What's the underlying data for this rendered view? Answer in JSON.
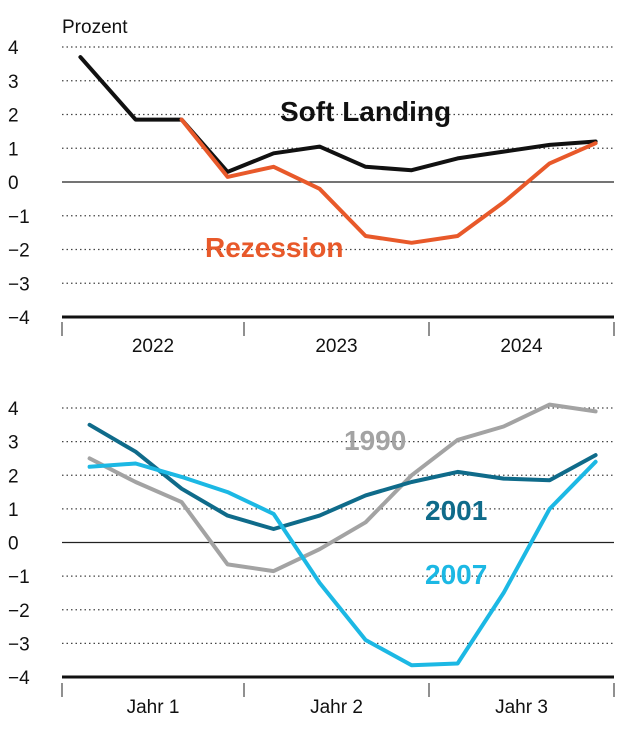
{
  "chart_data": [
    {
      "type": "line",
      "ylabel": "Prozent",
      "ylim": [
        -4,
        4
      ],
      "yticks": [
        4,
        3,
        2,
        1,
        0,
        -1,
        -2,
        -3,
        -4
      ],
      "ytick_labels": [
        "4",
        "3",
        "2",
        "1",
        "0",
        "−1",
        "−2",
        "−3",
        "−4"
      ],
      "categories": [
        "2022",
        "2023",
        "2024"
      ],
      "x_range": [
        0,
        3
      ],
      "grid": true,
      "series": [
        {
          "name": "Soft Landing",
          "color": "#111111",
          "x": [
            0.1,
            0.4,
            0.65,
            0.9,
            1.15,
            1.4,
            1.65,
            1.9,
            2.15,
            2.4,
            2.65,
            2.9
          ],
          "values": [
            3.7,
            1.85,
            1.85,
            0.3,
            0.85,
            1.05,
            0.45,
            0.35,
            0.7,
            0.9,
            1.1,
            1.2
          ]
        },
        {
          "name": "Rezession",
          "color": "#e8592a",
          "x": [
            0.65,
            0.9,
            1.15,
            1.4,
            1.65,
            1.9,
            2.15,
            2.4,
            2.65,
            2.9
          ],
          "values": [
            1.85,
            0.15,
            0.45,
            -0.2,
            -1.6,
            -1.8,
            -1.6,
            -0.6,
            0.55,
            1.15
          ]
        }
      ]
    },
    {
      "type": "line",
      "ylim": [
        -4,
        4
      ],
      "yticks": [
        4,
        3,
        2,
        1,
        0,
        -1,
        -2,
        -3,
        -4
      ],
      "ytick_labels": [
        "4",
        "3",
        "2",
        "1",
        "0",
        "−1",
        "−2",
        "−3",
        "−4"
      ],
      "categories": [
        "Jahr 1",
        "Jahr 2",
        "Jahr 3"
      ],
      "x_range": [
        0,
        3
      ],
      "grid": true,
      "series": [
        {
          "name": "1990",
          "color": "#a3a3a3",
          "x": [
            0.15,
            0.4,
            0.65,
            0.9,
            1.15,
            1.4,
            1.65,
            1.9,
            2.15,
            2.4,
            2.65,
            2.9
          ],
          "values": [
            2.5,
            1.8,
            1.2,
            -0.65,
            -0.85,
            -0.2,
            0.6,
            2.0,
            3.05,
            3.45,
            4.1,
            3.9
          ]
        },
        {
          "name": "2001",
          "color": "#0f6b8a",
          "x": [
            0.15,
            0.4,
            0.65,
            0.9,
            1.15,
            1.4,
            1.65,
            1.9,
            2.15,
            2.4,
            2.65,
            2.9
          ],
          "values": [
            3.5,
            2.7,
            1.6,
            0.8,
            0.4,
            0.8,
            1.4,
            1.8,
            2.1,
            1.9,
            1.85,
            2.6
          ]
        },
        {
          "name": "2007",
          "color": "#1cb8e4",
          "x": [
            0.15,
            0.4,
            0.65,
            0.9,
            1.15,
            1.4,
            1.65,
            1.9,
            2.15,
            2.4,
            2.65,
            2.9
          ],
          "values": [
            2.25,
            2.35,
            1.95,
            1.5,
            0.85,
            -1.2,
            -2.9,
            -3.65,
            -3.6,
            -1.5,
            1.0,
            2.4
          ]
        }
      ]
    }
  ]
}
